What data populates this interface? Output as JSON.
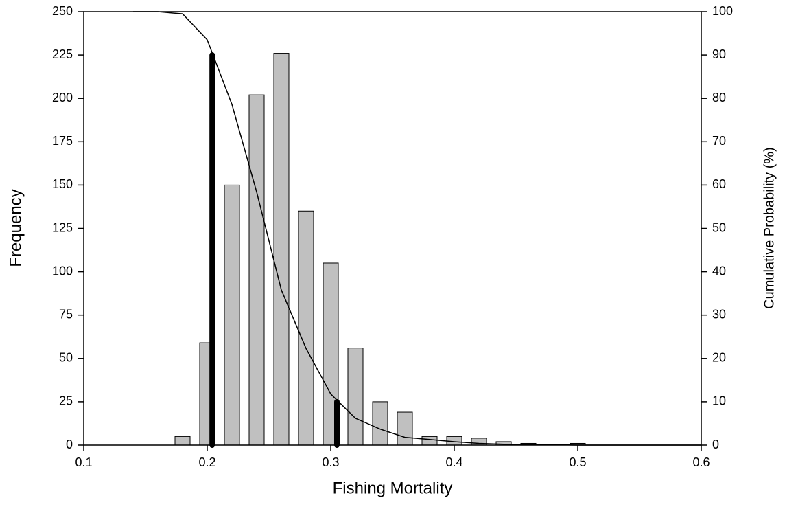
{
  "chart_data": {
    "type": "bar",
    "x_label": "Fishing Mortality",
    "y_label": "Frequency",
    "y2_label": "Cumulative Probability (%)",
    "xlim": [
      0.1,
      0.6
    ],
    "xticks": [
      0.1,
      0.2,
      0.3,
      0.4,
      0.5,
      0.6
    ],
    "ylim": [
      0,
      250
    ],
    "yticks": [
      0,
      25,
      50,
      75,
      100,
      125,
      150,
      175,
      200,
      225,
      250
    ],
    "y2lim": [
      0,
      100
    ],
    "y2ticks": [
      0,
      10,
      20,
      30,
      40,
      50,
      60,
      70,
      80,
      90,
      100
    ],
    "series": [
      {
        "type": "bar",
        "color": "#c0c0c0",
        "x": [
          0.18,
          0.2,
          0.22,
          0.24,
          0.26,
          0.28,
          0.3,
          0.32,
          0.34,
          0.36,
          0.38,
          0.4,
          0.42,
          0.44,
          0.46,
          0.5
        ],
        "values": [
          5,
          59,
          150,
          202,
          226,
          135,
          105,
          56,
          25,
          19,
          5,
          5,
          4,
          2,
          1,
          1
        ]
      },
      {
        "type": "line",
        "axis": "y2",
        "color": "#000000",
        "x": [
          0.14,
          0.16,
          0.18,
          0.2,
          0.22,
          0.24,
          0.26,
          0.28,
          0.3,
          0.32,
          0.34,
          0.36,
          0.38,
          0.4,
          0.42,
          0.44,
          0.46,
          0.48,
          0.5,
          0.6
        ],
        "values": [
          100,
          100,
          99.5,
          93.5,
          78.6,
          58.4,
          35.8,
          22.3,
          11.8,
          6.2,
          3.7,
          1.8,
          1.3,
          0.8,
          0.4,
          0.2,
          0.1,
          0.1,
          0,
          0
        ]
      }
    ],
    "reference_lines": [
      {
        "x": 0.204,
        "value": 90
      },
      {
        "x": 0.305,
        "value": 10
      }
    ]
  }
}
